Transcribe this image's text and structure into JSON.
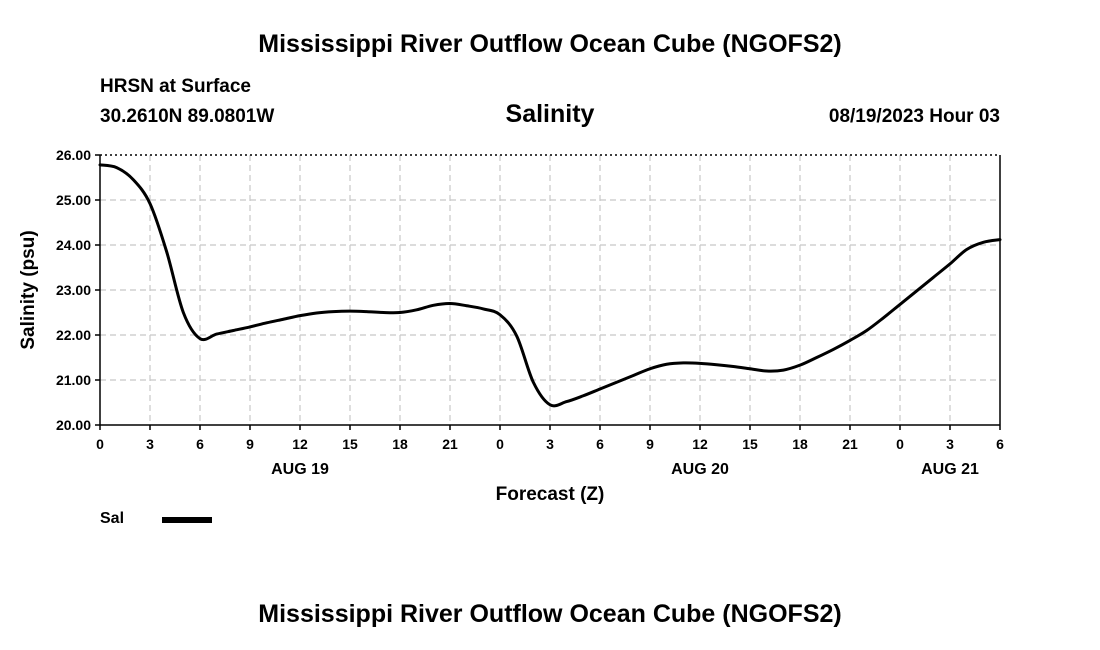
{
  "page": {
    "title_top": "Mississippi River Outflow Ocean Cube (NGOFS2)",
    "title_bottom": "Mississippi River Outflow Ocean Cube (NGOFS2)",
    "station": "HRSN at Surface",
    "coords": "30.2610N  89.0801W",
    "datetime": "08/19/2023 Hour 03"
  },
  "chart_data": {
    "type": "line",
    "title": "Salinity",
    "xlabel": "Forecast (Z)",
    "ylabel": "Salinity (psu)",
    "x_unit": "forecast hours from 08/19/2023 00Z",
    "xlim": [
      0,
      54
    ],
    "ylim": [
      20,
      26
    ],
    "y_ticks": [
      "20.00",
      "21.00",
      "22.00",
      "23.00",
      "24.00",
      "25.00",
      "26.00"
    ],
    "y_tick_values": [
      20,
      21,
      22,
      23,
      24,
      25,
      26
    ],
    "x_tick_hours": [
      0,
      3,
      6,
      9,
      12,
      15,
      18,
      21,
      24,
      27,
      30,
      33,
      36,
      39,
      42,
      45,
      48,
      51,
      54
    ],
    "x_tick_labels": [
      "0",
      "3",
      "6",
      "9",
      "12",
      "15",
      "18",
      "21",
      "0",
      "3",
      "6",
      "9",
      "12",
      "15",
      "18",
      "21",
      "0",
      "3",
      "6"
    ],
    "date_labels": [
      {
        "label": "AUG 19",
        "hour": 12
      },
      {
        "label": "AUG 20",
        "hour": 36
      },
      {
        "label": "AUG 21",
        "hour": 51
      }
    ],
    "grid": true,
    "legend": {
      "position": "bottom-left",
      "entries": [
        "Sal"
      ]
    },
    "series": [
      {
        "name": "Sal",
        "color": "#000000",
        "x": [
          0,
          1,
          2,
          3,
          4,
          5,
          6,
          7,
          8,
          9,
          10,
          11,
          12,
          13,
          14,
          15,
          16,
          17,
          18,
          19,
          20,
          21,
          22,
          23,
          24,
          25,
          26,
          27,
          28,
          29,
          30,
          31,
          32,
          33,
          34,
          35,
          36,
          37,
          38,
          39,
          40,
          41,
          42,
          43,
          44,
          45,
          46,
          47,
          48,
          49,
          50,
          51,
          52,
          53,
          54
        ],
        "values": [
          25.78,
          25.72,
          25.45,
          24.92,
          23.85,
          22.5,
          21.92,
          22.02,
          22.1,
          22.18,
          22.27,
          22.35,
          22.43,
          22.49,
          22.52,
          22.53,
          22.52,
          22.5,
          22.5,
          22.56,
          22.66,
          22.7,
          22.65,
          22.58,
          22.45,
          21.98,
          20.95,
          20.45,
          20.52,
          20.65,
          20.8,
          20.95,
          21.1,
          21.25,
          21.35,
          21.38,
          21.37,
          21.34,
          21.3,
          21.25,
          21.2,
          21.22,
          21.33,
          21.5,
          21.68,
          21.88,
          22.1,
          22.38,
          22.68,
          22.98,
          23.28,
          23.58,
          23.9,
          24.06,
          24.12
        ]
      }
    ]
  }
}
